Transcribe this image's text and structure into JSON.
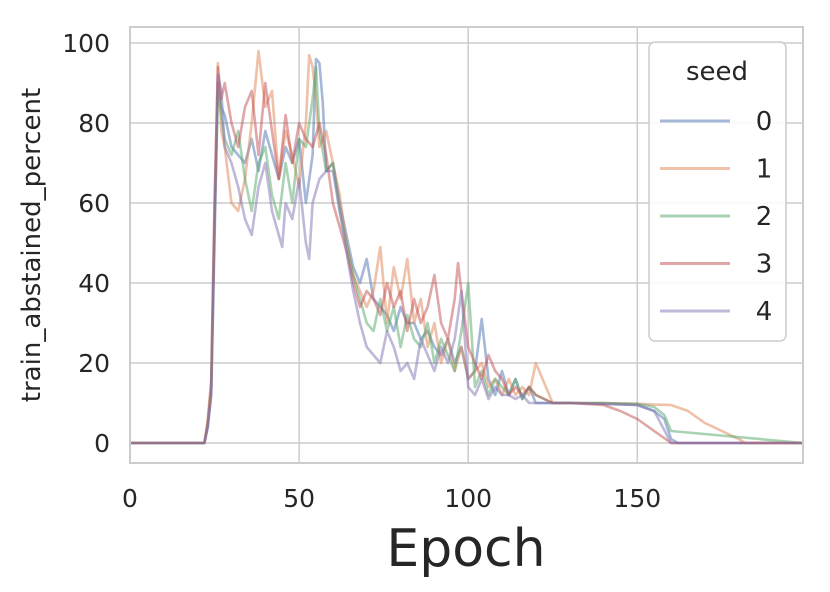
{
  "chart_data": {
    "type": "line",
    "title": "",
    "xlabel": "Epoch",
    "ylabel": "train_abstained_percent",
    "xlim": [
      0,
      199
    ],
    "ylim": [
      -5,
      104
    ],
    "xticks": [
      0,
      50,
      100,
      150
    ],
    "yticks": [
      0,
      20,
      40,
      60,
      80,
      100
    ],
    "grid": true,
    "legend": {
      "title": "seed",
      "placement": "top-right"
    },
    "series": [
      {
        "name": "0",
        "color": "#4c72b0",
        "x": [
          0,
          20,
          22,
          23,
          24,
          25,
          26,
          27,
          28,
          29,
          30,
          32,
          34,
          36,
          38,
          40,
          42,
          44,
          46,
          48,
          50,
          52,
          54,
          55,
          56,
          57,
          58,
          60,
          62,
          64,
          66,
          68,
          70,
          72,
          74,
          76,
          78,
          80,
          82,
          84,
          86,
          88,
          90,
          92,
          94,
          96,
          98,
          100,
          102,
          104,
          106,
          108,
          110,
          112,
          114,
          116,
          118,
          120,
          125,
          130,
          140,
          150,
          155,
          158,
          160,
          162,
          170,
          180,
          199
        ],
        "y": [
          0,
          0,
          0,
          4,
          12,
          50,
          90,
          84,
          82,
          78,
          74,
          72,
          70,
          76,
          68,
          78,
          72,
          66,
          74,
          70,
          76,
          60,
          72,
          96,
          95,
          85,
          68,
          70,
          60,
          52,
          44,
          40,
          46,
          36,
          34,
          32,
          28,
          34,
          30,
          30,
          26,
          28,
          24,
          22,
          26,
          20,
          24,
          16,
          18,
          31,
          16,
          12,
          18,
          12,
          16,
          11,
          14,
          10,
          10,
          10,
          9.8,
          9.5,
          8,
          6,
          1,
          0,
          0,
          0,
          0
        ]
      },
      {
        "name": "1",
        "color": "#dd8452",
        "x": [
          0,
          20,
          22,
          23,
          24,
          25,
          26,
          27,
          28,
          30,
          32,
          34,
          36,
          38,
          40,
          42,
          44,
          46,
          48,
          50,
          52,
          53,
          54,
          55,
          56,
          58,
          60,
          62,
          64,
          66,
          68,
          70,
          72,
          74,
          76,
          78,
          80,
          82,
          84,
          86,
          88,
          90,
          92,
          94,
          96,
          98,
          100,
          102,
          104,
          106,
          108,
          110,
          112,
          114,
          116,
          118,
          120,
          125,
          130,
          140,
          150,
          155,
          160,
          165,
          170,
          175,
          180,
          182,
          185,
          199
        ],
        "y": [
          0,
          0,
          0,
          6,
          16,
          60,
          95,
          78,
          74,
          60,
          58,
          66,
          80,
          98,
          84,
          88,
          66,
          78,
          72,
          64,
          80,
          97,
          94,
          86,
          74,
          78,
          70,
          62,
          50,
          42,
          38,
          34,
          38,
          49,
          30,
          44,
          36,
          46,
          30,
          36,
          24,
          30,
          20,
          26,
          18,
          24,
          16,
          18,
          20,
          14,
          16,
          12,
          16,
          12,
          14,
          12,
          20,
          10,
          10,
          10,
          9.8,
          9.6,
          9.5,
          8,
          5,
          3,
          1,
          0,
          0,
          0
        ]
      },
      {
        "name": "2",
        "color": "#55a868",
        "x": [
          0,
          20,
          22,
          23,
          24,
          25,
          26,
          27,
          28,
          30,
          32,
          34,
          36,
          38,
          40,
          42,
          44,
          46,
          48,
          50,
          52,
          54,
          55,
          56,
          58,
          60,
          62,
          64,
          66,
          68,
          70,
          72,
          74,
          76,
          78,
          80,
          82,
          84,
          86,
          88,
          90,
          92,
          94,
          96,
          98,
          100,
          102,
          104,
          106,
          108,
          110,
          112,
          114,
          116,
          118,
          120,
          125,
          130,
          140,
          150,
          155,
          158,
          160,
          199
        ],
        "y": [
          0,
          0,
          0,
          5,
          14,
          55,
          88,
          82,
          76,
          72,
          78,
          66,
          58,
          70,
          74,
          62,
          56,
          70,
          60,
          76,
          74,
          86,
          94,
          78,
          68,
          70,
          58,
          50,
          42,
          36,
          30,
          28,
          36,
          28,
          34,
          24,
          32,
          26,
          24,
          30,
          20,
          26,
          22,
          18,
          28,
          40,
          14,
          18,
          12,
          16,
          14,
          12,
          16,
          11,
          14,
          12,
          10,
          10,
          10,
          9.8,
          9,
          7,
          3,
          0
        ]
      },
      {
        "name": "3",
        "color": "#c44e52",
        "x": [
          0,
          20,
          22,
          23,
          24,
          25,
          26,
          27,
          28,
          30,
          32,
          34,
          36,
          38,
          40,
          42,
          44,
          46,
          48,
          50,
          52,
          54,
          56,
          58,
          60,
          62,
          64,
          66,
          68,
          70,
          72,
          74,
          76,
          78,
          80,
          82,
          84,
          86,
          88,
          90,
          92,
          94,
          96,
          97,
          98,
          100,
          102,
          104,
          106,
          108,
          110,
          112,
          114,
          116,
          118,
          120,
          125,
          130,
          140,
          145,
          150,
          155,
          160,
          199
        ],
        "y": [
          0,
          0,
          0,
          5,
          14,
          58,
          94,
          86,
          90,
          80,
          74,
          84,
          88,
          72,
          90,
          78,
          66,
          82,
          70,
          80,
          76,
          74,
          80,
          72,
          60,
          54,
          48,
          40,
          34,
          38,
          36,
          32,
          40,
          34,
          38,
          28,
          36,
          30,
          34,
          42,
          30,
          26,
          36,
          45,
          38,
          24,
          20,
          16,
          22,
          18,
          16,
          12,
          14,
          12,
          14,
          12,
          10,
          10,
          9.5,
          8,
          6,
          3,
          0,
          0
        ]
      },
      {
        "name": "4",
        "color": "#8172b3",
        "x": [
          0,
          20,
          22,
          23,
          24,
          25,
          26,
          27,
          28,
          30,
          32,
          34,
          36,
          38,
          40,
          42,
          44,
          45,
          46,
          48,
          50,
          52,
          53,
          54,
          56,
          58,
          60,
          62,
          64,
          66,
          68,
          70,
          72,
          74,
          76,
          78,
          80,
          82,
          84,
          86,
          88,
          90,
          92,
          94,
          96,
          98,
          100,
          102,
          104,
          106,
          108,
          110,
          112,
          114,
          116,
          118,
          120,
          125,
          130,
          140,
          150,
          155,
          160,
          199
        ],
        "y": [
          0,
          0,
          0,
          4,
          12,
          54,
          92,
          88,
          74,
          70,
          64,
          56,
          52,
          64,
          70,
          58,
          52,
          49,
          60,
          56,
          66,
          50,
          46,
          60,
          66,
          68,
          68,
          58,
          48,
          38,
          30,
          24,
          22,
          20,
          28,
          24,
          18,
          20,
          16,
          26,
          22,
          18,
          24,
          20,
          26,
          38,
          14,
          12,
          16,
          11,
          14,
          12,
          12,
          11,
          12,
          10,
          10,
          10,
          10,
          9.8,
          9.5,
          8,
          0,
          0
        ]
      }
    ]
  }
}
